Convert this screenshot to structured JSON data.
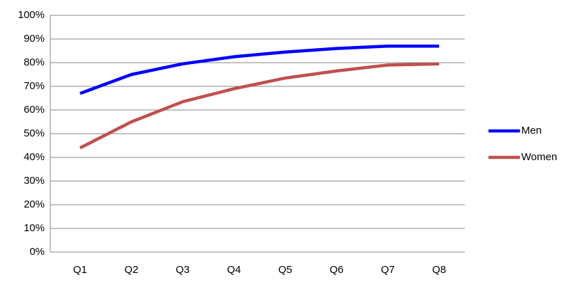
{
  "chart_data": {
    "type": "line",
    "categories": [
      "Q1",
      "Q2",
      "Q3",
      "Q4",
      "Q5",
      "Q6",
      "Q7",
      "Q8"
    ],
    "series": [
      {
        "name": "Men",
        "color": "#0000ff",
        "values": [
          67,
          75,
          79.5,
          82.5,
          84.5,
          86,
          87,
          87
        ]
      },
      {
        "name": "Women",
        "color": "#c0504d",
        "values": [
          44,
          55,
          63.5,
          69,
          73.5,
          76.5,
          79,
          79.5
        ]
      }
    ],
    "ylim": [
      0,
      100
    ],
    "yticks": [
      {
        "value": 0,
        "label": "0%"
      },
      {
        "value": 10,
        "label": "10%"
      },
      {
        "value": 20,
        "label": "20%"
      },
      {
        "value": 30,
        "label": "30%"
      },
      {
        "value": 40,
        "label": "40%"
      },
      {
        "value": 50,
        "label": "50%"
      },
      {
        "value": 60,
        "label": "60%"
      },
      {
        "value": 70,
        "label": "70%"
      },
      {
        "value": 80,
        "label": "80%"
      },
      {
        "value": 90,
        "label": "90%"
      },
      {
        "value": 100,
        "label": "100%"
      }
    ],
    "grid": true,
    "legend": "right"
  }
}
